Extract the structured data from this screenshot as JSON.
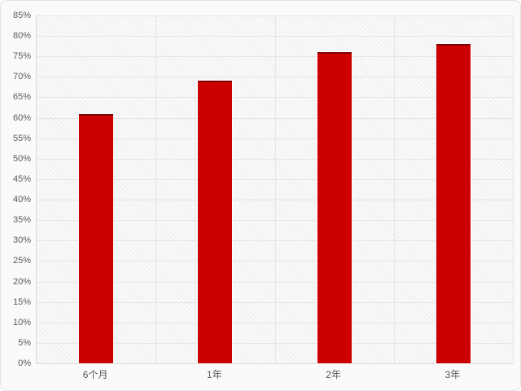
{
  "chart_data": {
    "type": "bar",
    "title": "",
    "xlabel": "",
    "ylabel": "",
    "categories": [
      "6个月",
      "1年",
      "2年",
      "3年"
    ],
    "values": [
      61,
      69,
      76,
      78
    ],
    "value_unit": "%",
    "ylim": [
      0,
      85
    ],
    "ytick_step": 5,
    "ytick_suffix": "%",
    "grid": true,
    "legend": false
  },
  "colors": {
    "bar": "#cc0000",
    "bar_top_edge": "#7f0000",
    "hatch": "#ececec",
    "gridline": "#e4e4e4",
    "axis_line": "#d9d9d9",
    "tick_text": "#595959",
    "background": "#fbfafa",
    "frame_border": "#e3e3e3"
  }
}
